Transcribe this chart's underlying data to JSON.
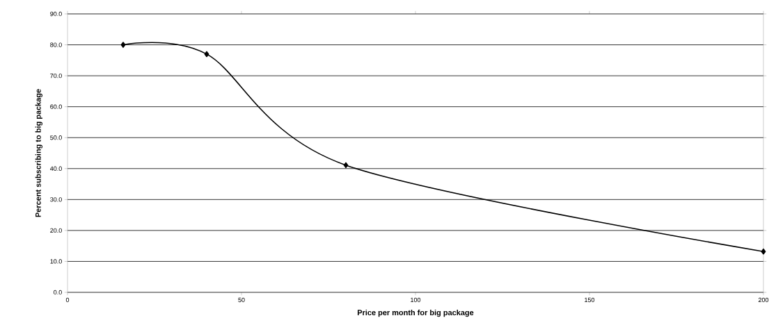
{
  "chart_data": {
    "type": "line",
    "xlabel": "Price per month for big package",
    "ylabel": "Percent subscribing to big package",
    "x": [
      16,
      40,
      80,
      200
    ],
    "series": [
      {
        "color": "#000000",
        "values": [
          80.0,
          77.0,
          41.1,
          13.2
        ]
      }
    ],
    "xlim": [
      0,
      200
    ],
    "xticks": [
      0,
      50,
      100,
      150,
      200
    ],
    "ylim": [
      0,
      90
    ],
    "yticks": [
      {
        "value": 0,
        "label": "0.0"
      },
      {
        "value": 10,
        "label": "10.0"
      },
      {
        "value": 20,
        "label": "20.0"
      },
      {
        "value": 30,
        "label": "30.0"
      },
      {
        "value": 40,
        "label": "40.0"
      },
      {
        "value": 50,
        "label": "50.0"
      },
      {
        "value": 60,
        "label": "60.0"
      },
      {
        "value": 70,
        "label": "70.0"
      },
      {
        "value": 80,
        "label": "80.0"
      },
      {
        "value": 90,
        "label": "90.0"
      }
    ],
    "grid": "y",
    "marker": "diamond",
    "line_style": "solid"
  }
}
